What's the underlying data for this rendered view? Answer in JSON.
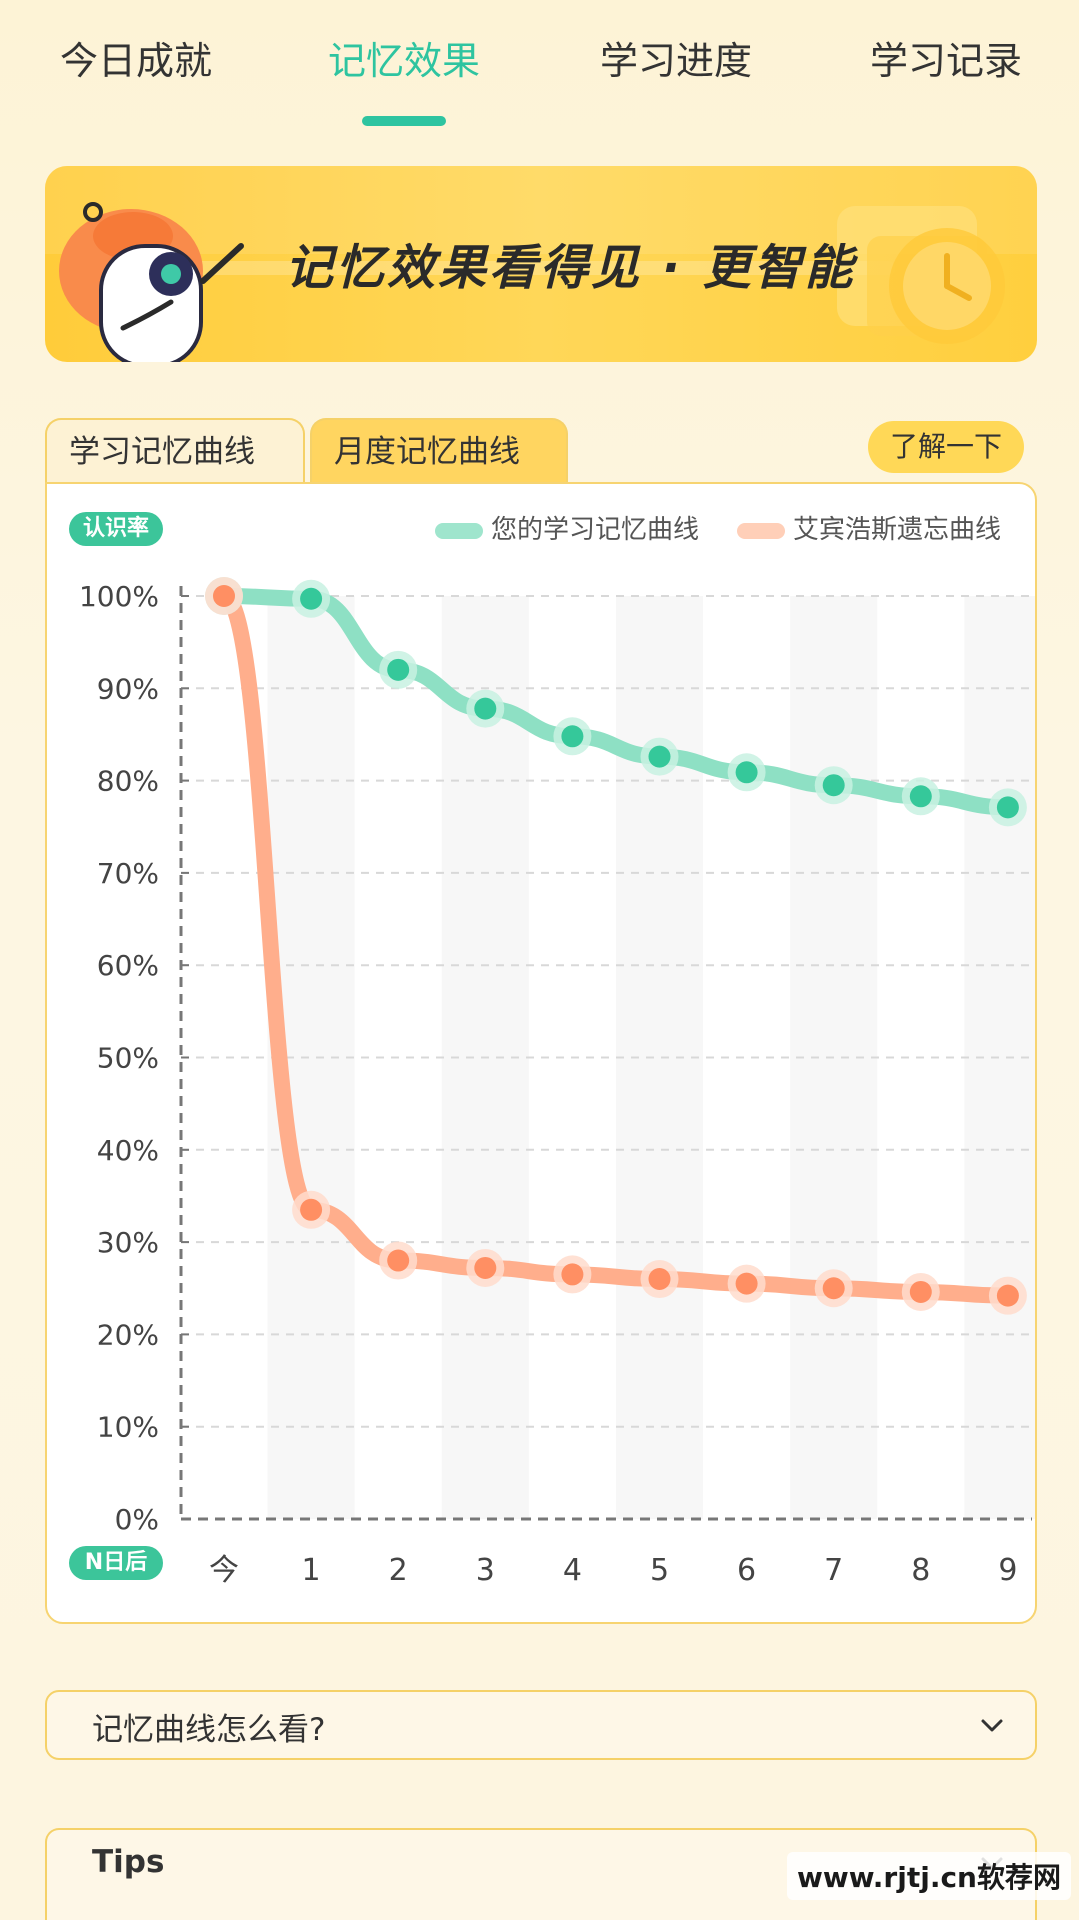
{
  "tabs": [
    "今日成就",
    "记忆效果",
    "学习进度",
    "学习记录"
  ],
  "active_tab": 1,
  "banner": {
    "title": "记忆效果看得见 · 更智能"
  },
  "sub_tabs": [
    "学习记忆曲线",
    "月度记忆曲线"
  ],
  "active_sub_tab": 1,
  "learn_button": "了解一下",
  "chart_data": {
    "type": "line",
    "y_badge": "认识率",
    "x_badge": "N日后",
    "categories": [
      "今",
      "1",
      "2",
      "3",
      "4",
      "5",
      "6",
      "7",
      "8",
      "9"
    ],
    "ylim": [
      0,
      100
    ],
    "yticks": [
      "0%",
      "10%",
      "20%",
      "30%",
      "40%",
      "50%",
      "60%",
      "70%",
      "80%",
      "90%",
      "100%"
    ],
    "grid": true,
    "legend_position": "top-right",
    "series": [
      {
        "name": "您的学习记忆曲线",
        "color": "#35c89a",
        "values": [
          100,
          99.7,
          92,
          87.8,
          84.8,
          82.6,
          80.9,
          79.5,
          78.3,
          77.1
        ]
      },
      {
        "name": "艾宾浩斯遗忘曲线",
        "color": "#ff9f78",
        "values": [
          100,
          33.5,
          28,
          27.2,
          26.5,
          26,
          25.5,
          25,
          24.6,
          24.2
        ]
      }
    ]
  },
  "accordions": [
    "记忆曲线怎么看?",
    "Tips"
  ],
  "watermark": "www.rjtj.cn软荐网"
}
